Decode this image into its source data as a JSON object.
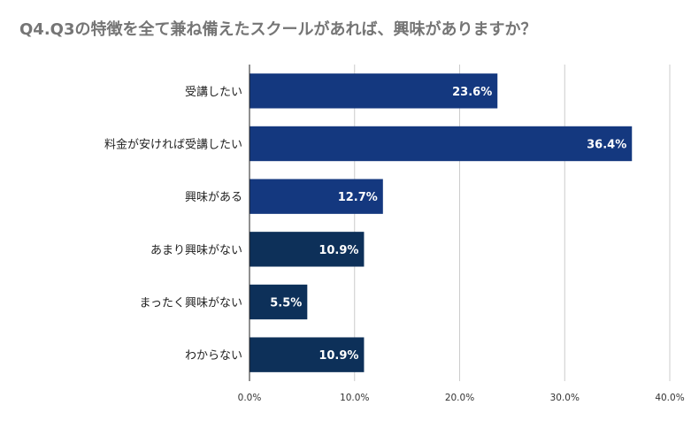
{
  "chart_data": {
    "type": "bar",
    "orientation": "horizontal",
    "title": "Q4.Q3の特徴を全て兼ね備えたスクールがあれば、興味がありますか？",
    "categories": [
      "受講したい",
      "料金が安ければ受講したい",
      "興味がある",
      "あまり興味がない",
      "まったく興味がない",
      "わからない"
    ],
    "values": [
      23.6,
      36.4,
      12.7,
      10.9,
      5.5,
      10.9
    ],
    "value_labels": [
      "23.6%",
      "36.4%",
      "12.7%",
      "10.9%",
      "5.5%",
      "10.9%"
    ],
    "colors": [
      "#14387f",
      "#14387f",
      "#14387f",
      "#0d3059",
      "#0d3059",
      "#0d3059"
    ],
    "xlim": [
      0,
      40
    ],
    "xticks": [
      0,
      10,
      20,
      30,
      40
    ],
    "xtick_labels": [
      "0.0%",
      "10.0%",
      "20.0%",
      "30.0%",
      "40.0%"
    ],
    "grid": true,
    "legend": "none"
  }
}
